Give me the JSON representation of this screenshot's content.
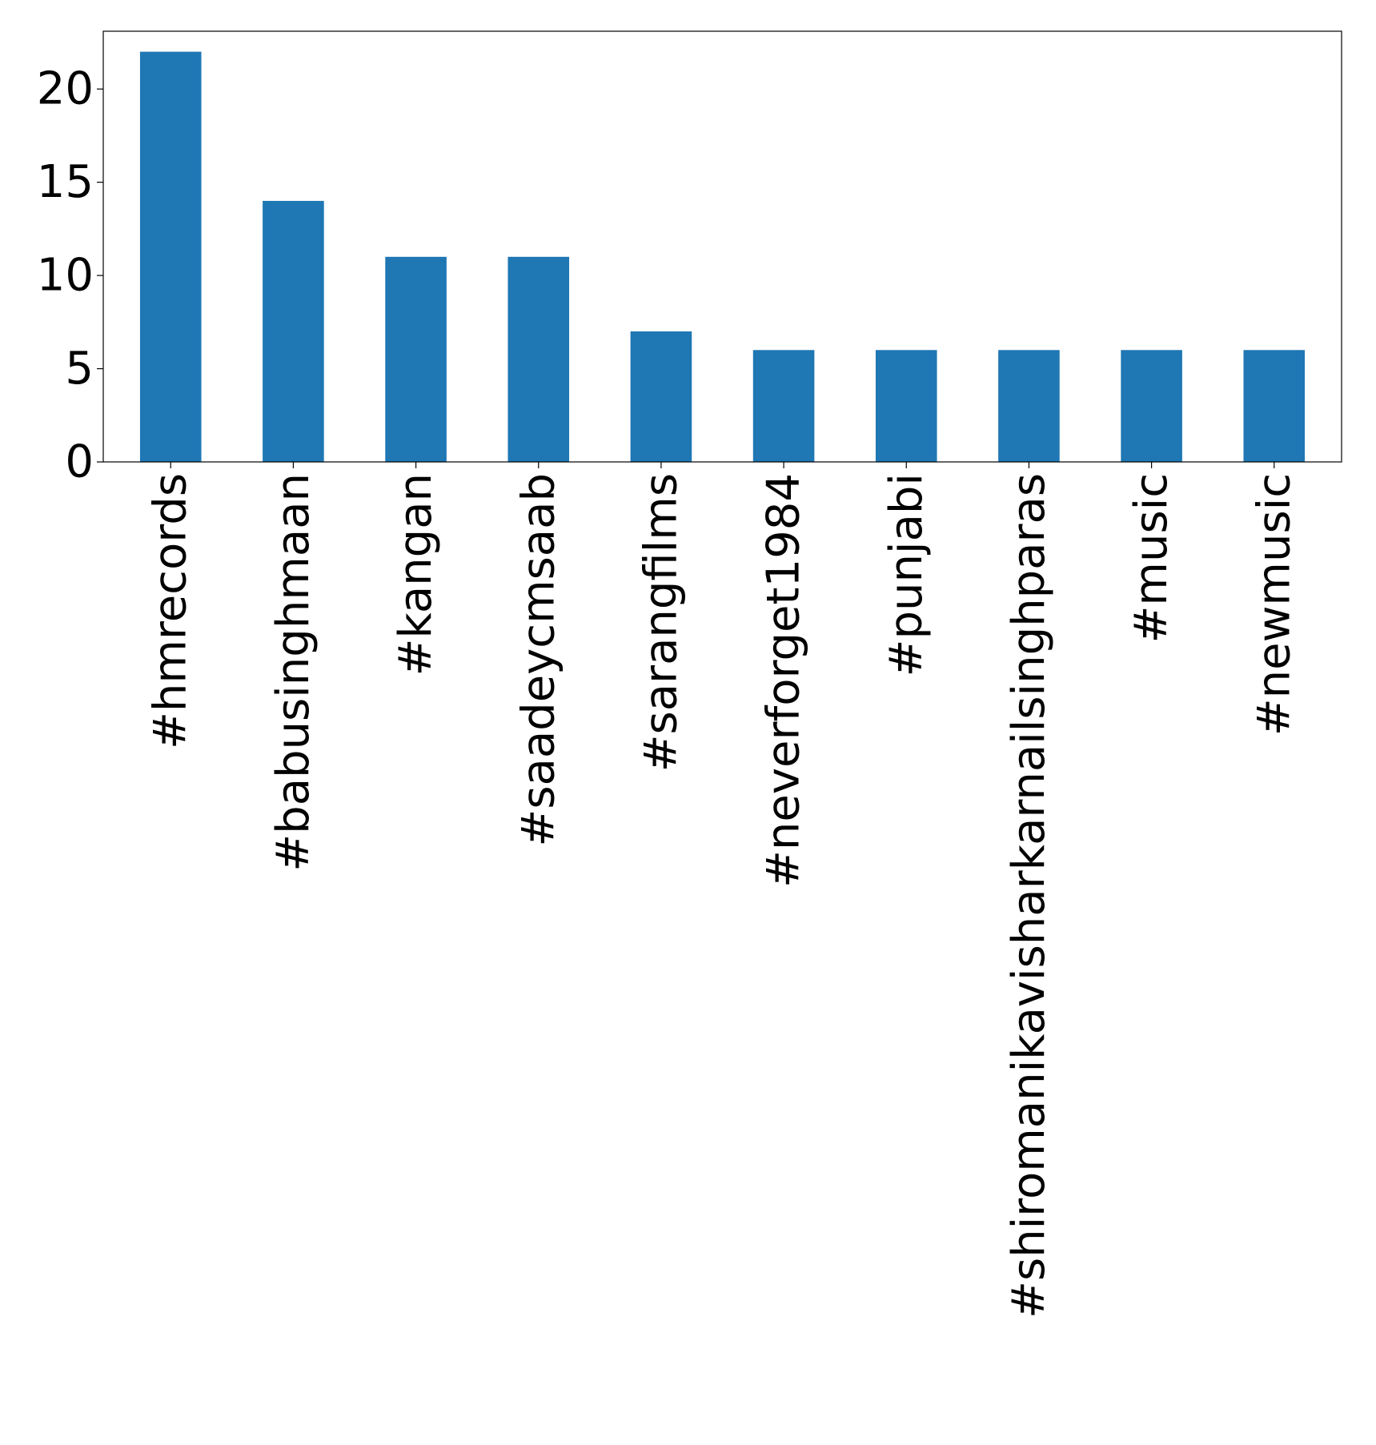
{
  "chart_data": {
    "type": "bar",
    "title": "",
    "xlabel": "",
    "ylabel": "",
    "categories": [
      "#hmrecords",
      "#babusinghmaan",
      "#kangan",
      "#saadeycmsaab",
      "#sarangfilms",
      "#neverforget1984",
      "#punjabi",
      "#shiromanikavisharkarnailsinghparas",
      "#music",
      "#newmusic"
    ],
    "values": [
      22,
      14,
      11,
      11,
      7,
      6,
      6,
      6,
      6,
      6
    ],
    "ylim": [
      0,
      23.1
    ],
    "yticks": [
      0,
      5,
      10,
      15,
      20
    ],
    "grid": false,
    "legend": "none",
    "bar_color": "#1f77b4"
  }
}
